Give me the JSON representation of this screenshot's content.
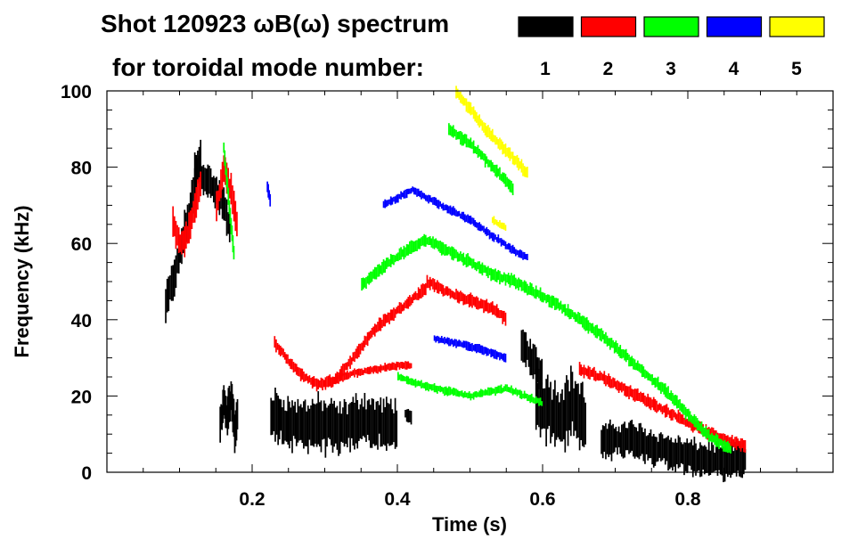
{
  "chart_data": {
    "type": "scatter",
    "title": "Shot 120923 ωB(ω) spectrum",
    "subtitle": "for toroidal mode number:",
    "xlabel": "Time (s)",
    "ylabel": "Frequency (kHz)",
    "xlim": [
      0.0,
      1.0
    ],
    "ylim": [
      0,
      100
    ],
    "x_ticks": [
      {
        "value": 0.2,
        "label": "0.2"
      },
      {
        "value": 0.4,
        "label": "0.4"
      },
      {
        "value": 0.6,
        "label": "0.6"
      },
      {
        "value": 0.8,
        "label": "0.8"
      }
    ],
    "y_ticks": [
      {
        "value": 0,
        "label": "0"
      },
      {
        "value": 20,
        "label": "20"
      },
      {
        "value": 40,
        "label": "40"
      },
      {
        "value": 60,
        "label": "60"
      },
      {
        "value": 80,
        "label": "80"
      },
      {
        "value": 100,
        "label": "100"
      }
    ],
    "x_minor_step": 0.05,
    "y_minor_step": 5,
    "legend_position": "top-right",
    "series": [
      {
        "name": "1",
        "color": "#000000",
        "segments": [
          {
            "x": [
              0.08,
              0.09,
              0.1,
              0.11,
              0.12,
              0.13
            ],
            "y": [
              44,
              50,
              58,
              66,
              75,
              86
            ],
            "spread": 9
          },
          {
            "x": [
              0.12,
              0.14,
              0.16,
              0.17
            ],
            "y": [
              80,
              76,
              70,
              62
            ],
            "spread": 8
          },
          {
            "x": [
              0.155,
              0.16,
              0.165,
              0.17,
              0.175,
              0.18
            ],
            "y": [
              12,
              18,
              14,
              20,
              11,
              16
            ],
            "spread": 10
          },
          {
            "x": [
              0.225,
              0.26,
              0.29,
              0.32,
              0.35,
              0.38,
              0.4
            ],
            "y": [
              15,
              12,
              13,
              11,
              14,
              12,
              13
            ],
            "spread": 12
          },
          {
            "x": [
              0.41,
              0.42
            ],
            "y": [
              15,
              14
            ],
            "spread": 3
          },
          {
            "x": [
              0.57,
              0.58,
              0.59,
              0.6
            ],
            "y": [
              34,
              31,
              28,
              25
            ],
            "spread": 8
          },
          {
            "x": [
              0.59,
              0.62,
              0.64,
              0.66
            ],
            "y": [
              20,
              14,
              18,
              12
            ],
            "spread": 16
          },
          {
            "x": [
              0.68,
              0.72,
              0.76,
              0.8,
              0.84,
              0.88
            ],
            "y": [
              8,
              9,
              6,
              4,
              3,
              3
            ],
            "spread": 8
          }
        ]
      },
      {
        "name": "2",
        "color": "#ff0000",
        "segments": [
          {
            "x": [
              0.09,
              0.1,
              0.11,
              0.12,
              0.13
            ],
            "y": [
              65,
              60,
              62,
              70,
              76
            ],
            "spread": 7
          },
          {
            "x": [
              0.15,
              0.16,
              0.17,
              0.18
            ],
            "y": [
              70,
              80,
              74,
              62
            ],
            "spread": 7
          },
          {
            "x": [
              0.23,
              0.25,
              0.27,
              0.29,
              0.31,
              0.33,
              0.35,
              0.37,
              0.39,
              0.41,
              0.43,
              0.44
            ],
            "y": [
              34,
              29,
              25,
              23,
              24,
              28,
              33,
              38,
              41,
              44,
              47,
              48
            ],
            "spread": 3
          },
          {
            "x": [
              0.31,
              0.34,
              0.37,
              0.4,
              0.42
            ],
            "y": [
              24,
              26,
              27,
              28,
              28
            ],
            "spread": 2
          },
          {
            "x": [
              0.44,
              0.47,
              0.5,
              0.53,
              0.55
            ],
            "y": [
              50,
              47,
              45,
              43,
              40
            ],
            "spread": 3
          },
          {
            "x": [
              0.65,
              0.68,
              0.71,
              0.74,
              0.77,
              0.8,
              0.83,
              0.86,
              0.88
            ],
            "y": [
              27,
              25,
              22,
              19,
              16,
              13,
              10,
              8,
              7
            ],
            "spread": 3
          }
        ]
      },
      {
        "name": "3",
        "color": "#00ff00",
        "segments": [
          {
            "x": [
              0.16,
              0.165,
              0.17,
              0.175
            ],
            "y": [
              85,
              75,
              65,
              55
            ],
            "spread": 4
          },
          {
            "x": [
              0.35,
              0.38,
              0.41,
              0.44,
              0.47,
              0.5,
              0.53,
              0.56,
              0.59,
              0.62,
              0.65,
              0.68,
              0.71,
              0.74,
              0.77,
              0.8,
              0.83,
              0.86
            ],
            "y": [
              49,
              54,
              58,
              61,
              58,
              55,
              52,
              50,
              47,
              44,
              40,
              36,
              31,
              26,
              21,
              15,
              9,
              6
            ],
            "spread": 3
          },
          {
            "x": [
              0.47,
              0.5,
              0.53,
              0.56
            ],
            "y": [
              90,
              86,
              80,
              74
            ],
            "spread": 3
          },
          {
            "x": [
              0.4,
              0.45,
              0.5,
              0.55,
              0.6
            ],
            "y": [
              25,
              22,
              20,
              22,
              18
            ],
            "spread": 2
          }
        ]
      },
      {
        "name": "4",
        "color": "#0000ff",
        "segments": [
          {
            "x": [
              0.38,
              0.4,
              0.42,
              0.43,
              0.45,
              0.48,
              0.5,
              0.53,
              0.56,
              0.58
            ],
            "y": [
              70,
              72,
              74,
              73,
              71,
              68,
              66,
              62,
              58,
              56
            ],
            "spread": 2
          },
          {
            "x": [
              0.45,
              0.5,
              0.55
            ],
            "y": [
              35,
              33,
              30
            ],
            "spread": 2
          },
          {
            "x": [
              0.22,
              0.225
            ],
            "y": [
              75,
              70
            ],
            "spread": 3
          }
        ]
      },
      {
        "name": "5",
        "color": "#ffff00",
        "segments": [
          {
            "x": [
              0.48,
              0.5,
              0.52,
              0.54,
              0.56,
              0.58
            ],
            "y": [
              100,
              95,
              90,
              86,
              82,
              78
            ],
            "spread": 3
          },
          {
            "x": [
              0.53,
              0.55
            ],
            "y": [
              66,
              64
            ],
            "spread": 2
          }
        ]
      }
    ]
  }
}
